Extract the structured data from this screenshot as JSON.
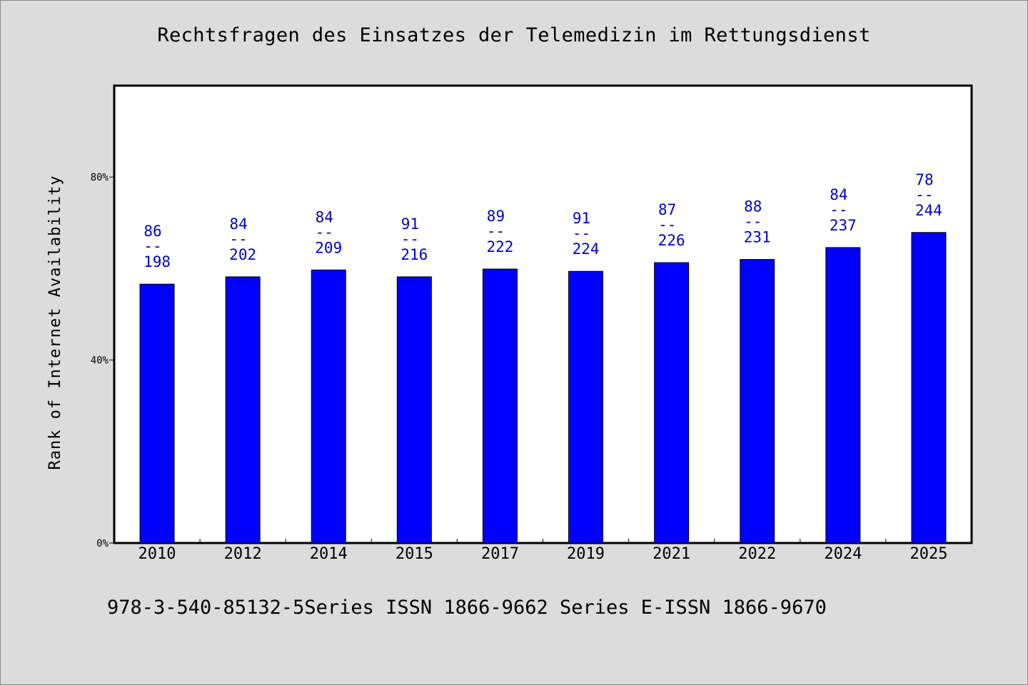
{
  "title": "Rechtsfragen des Einsatzes der Telemedizin im Rettungsdienst",
  "footer": "978-3-540-85132-5Series ISSN 1866-9662 Series E-ISSN 1866-9670",
  "chart_data": {
    "type": "bar",
    "title": "Rechtsfragen des Einsatzes der Telemedizin im Rettungsdienst",
    "xlabel": "",
    "ylabel": "Rank of Internet Availability",
    "ylim": [
      0,
      100
    ],
    "yticks": [
      0,
      40,
      80
    ],
    "ytick_labels": [
      "0%",
      "40%",
      "80%"
    ],
    "grid": false,
    "categories": [
      "2010",
      "2012",
      "2014",
      "2015",
      "2017",
      "2019",
      "2021",
      "2022",
      "2024",
      "2025"
    ],
    "values": [
      56.6,
      58.2,
      59.7,
      58.2,
      59.9,
      59.4,
      61.3,
      62.0,
      64.6,
      67.9
    ],
    "labels_top": [
      "86",
      "84",
      "84",
      "91",
      "89",
      "91",
      "87",
      "88",
      "84",
      "78"
    ],
    "labels_sep": "--",
    "labels_bottom": [
      "198",
      "202",
      "209",
      "216",
      "222",
      "224",
      "226",
      "231",
      "237",
      "244"
    ],
    "bar_color": "#0000ff",
    "label_color": "#0000cc"
  }
}
